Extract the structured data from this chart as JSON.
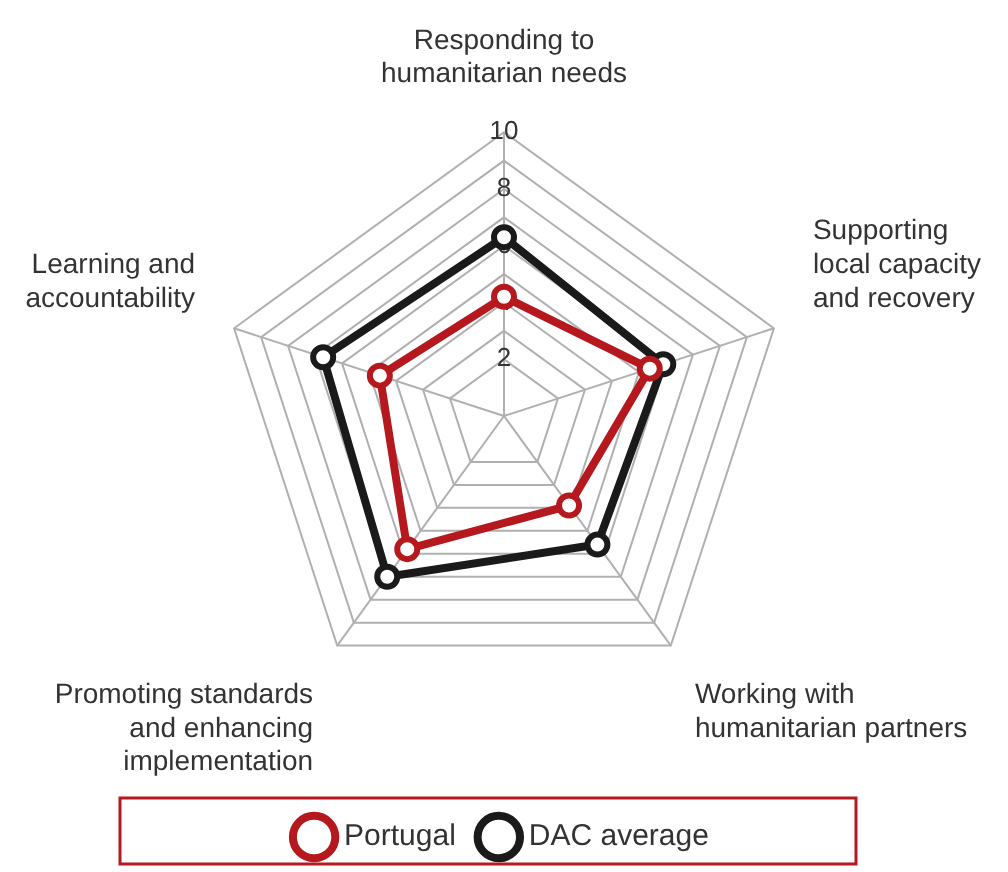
{
  "chart_data": {
    "type": "radar",
    "categories": [
      "Responding to\nhumanitarian needs",
      "Supporting\nlocal capacity\nand recovery",
      "Working with\nhumanitarian partners",
      "Promoting standards\nand enhancing\nimplementation",
      "Learning and\naccountability"
    ],
    "series": [
      {
        "name": "Portugal",
        "color": "#b5191e",
        "values": [
          4.2,
          5.4,
          3.9,
          5.8,
          4.6
        ]
      },
      {
        "name": "DAC average",
        "color": "#1a1a1a",
        "values": [
          6.3,
          5.9,
          5.6,
          7.0,
          6.7
        ]
      }
    ],
    "ylim": [
      0,
      10
    ],
    "yticks": [
      2,
      4,
      6,
      8,
      10
    ],
    "grid": true,
    "legend": "bottom",
    "marker": "circle",
    "line_style": "solid"
  }
}
